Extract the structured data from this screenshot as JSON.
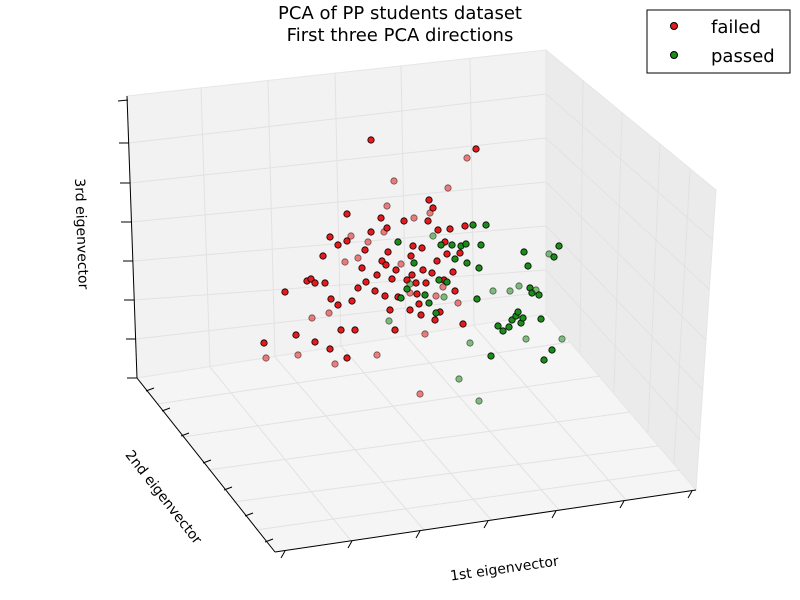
{
  "chart_data": {
    "type": "scatter",
    "title": [
      "PCA of PP students dataset",
      "First three PCA directions"
    ],
    "xlabel": "1st eigenvector",
    "ylabel": "2nd eigenvector",
    "zlabel": "3rd eigenvector",
    "grid": true,
    "legend": "top-right",
    "series": [
      {
        "name": "failed",
        "color": "#e41a1c",
        "points": [
          [
            266,
            358
          ],
          [
            264,
            343
          ],
          [
            285,
            292
          ],
          [
            296,
            335
          ],
          [
            298,
            355
          ],
          [
            307,
            281
          ],
          [
            311,
            279
          ],
          [
            315,
            283
          ],
          [
            312,
            318
          ],
          [
            315,
            342
          ],
          [
            323,
            256
          ],
          [
            325,
            283
          ],
          [
            329,
            313
          ],
          [
            330,
            349
          ],
          [
            331,
            299
          ],
          [
            330,
            237
          ],
          [
            335,
            364
          ],
          [
            338,
            305
          ],
          [
            338,
            245
          ],
          [
            341,
            330
          ],
          [
            345,
            262
          ],
          [
            347,
            241
          ],
          [
            347,
            358
          ],
          [
            347,
            214
          ],
          [
            351,
            236
          ],
          [
            352,
            301
          ],
          [
            355,
            330
          ],
          [
            358,
            288
          ],
          [
            358,
            258
          ],
          [
            362,
            268
          ],
          [
            365,
            250
          ],
          [
            366,
            282
          ],
          [
            368,
            242
          ],
          [
            371,
            232
          ],
          [
            371,
            140
          ],
          [
            375,
            291
          ],
          [
            377,
            355
          ],
          [
            377,
            275
          ],
          [
            381,
            218
          ],
          [
            382,
            261
          ],
          [
            384,
            232
          ],
          [
            385,
            296
          ],
          [
            386,
            265
          ],
          [
            387,
            228
          ],
          [
            387,
            206
          ],
          [
            388,
            252
          ],
          [
            390,
            310
          ],
          [
            392,
            279
          ],
          [
            394,
            181
          ],
          [
            395,
            330
          ],
          [
            396,
            270
          ],
          [
            398,
            297
          ],
          [
            401,
            264
          ],
          [
            404,
            221
          ],
          [
            407,
            280
          ],
          [
            410,
            310
          ],
          [
            410,
            293
          ],
          [
            411,
            256
          ],
          [
            412,
            275
          ],
          [
            413,
            246
          ],
          [
            414,
            218
          ],
          [
            416,
            283
          ],
          [
            417,
            294
          ],
          [
            419,
            304
          ],
          [
            420,
            394
          ],
          [
            421,
            315
          ],
          [
            422,
            248
          ],
          [
            423,
            270
          ],
          [
            425,
            334
          ],
          [
            426,
            283
          ],
          [
            428,
            221
          ],
          [
            429,
            200
          ],
          [
            430,
            213
          ],
          [
            432,
            273
          ],
          [
            433,
            208
          ],
          [
            435,
            320
          ],
          [
            436,
            296
          ],
          [
            437,
            261
          ],
          [
            438,
            230
          ],
          [
            440,
            312
          ],
          [
            443,
            287
          ],
          [
            444,
            280
          ],
          [
            445,
            242
          ],
          [
            447,
            254
          ],
          [
            448,
            188
          ],
          [
            450,
            229
          ],
          [
            453,
            272
          ],
          [
            455,
            291
          ],
          [
            458,
            303
          ],
          [
            460,
            253
          ],
          [
            463,
            324
          ],
          [
            465,
            226
          ],
          [
            467,
            158
          ],
          [
            476,
            149
          ]
        ]
      },
      {
        "name": "passed",
        "color": "#1a8c1a",
        "points": [
          [
            389,
            321
          ],
          [
            398,
            242
          ],
          [
            401,
            298
          ],
          [
            407,
            289
          ],
          [
            410,
            284
          ],
          [
            414,
            263
          ],
          [
            425,
            295
          ],
          [
            429,
            303
          ],
          [
            433,
            236
          ],
          [
            436,
            313
          ],
          [
            439,
            280
          ],
          [
            441,
            245
          ],
          [
            444,
            297
          ],
          [
            447,
            282
          ],
          [
            452,
            245
          ],
          [
            455,
            259
          ],
          [
            459,
            379
          ],
          [
            461,
            246
          ],
          [
            466,
            244
          ],
          [
            467,
            263
          ],
          [
            470,
            343
          ],
          [
            473,
            225
          ],
          [
            477,
            299
          ],
          [
            479,
            268
          ],
          [
            479,
            401
          ],
          [
            481,
            245
          ],
          [
            486,
            225
          ],
          [
            491,
            356
          ],
          [
            493,
            291
          ],
          [
            498,
            326
          ],
          [
            503,
            331
          ],
          [
            509,
            327
          ],
          [
            510,
            291
          ],
          [
            512,
            320
          ],
          [
            516,
            316
          ],
          [
            518,
            312
          ],
          [
            519,
            286
          ],
          [
            521,
            323
          ],
          [
            523,
            318
          ],
          [
            524,
            252
          ],
          [
            526,
            339
          ],
          [
            528,
            266
          ],
          [
            530,
            288
          ],
          [
            532,
            293
          ],
          [
            536,
            290
          ],
          [
            539,
            295
          ],
          [
            541,
            319
          ],
          [
            544,
            360
          ],
          [
            549,
            254
          ],
          [
            552,
            350
          ],
          [
            554,
            257
          ],
          [
            559,
            246
          ],
          [
            562,
            339
          ]
        ]
      }
    ]
  }
}
